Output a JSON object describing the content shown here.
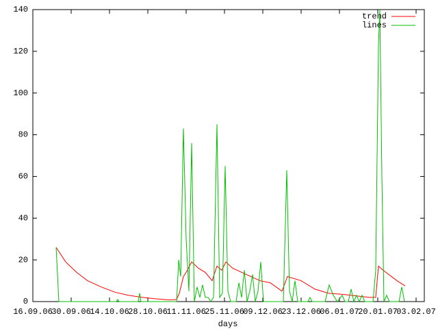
{
  "chart_data": {
    "type": "line",
    "x_label": "days",
    "xlim": [
      0,
      143
    ],
    "ylim": [
      0,
      140
    ],
    "xticks": [
      {
        "value": 0,
        "label": "16.09.06"
      },
      {
        "value": 14,
        "label": "30.09.06"
      },
      {
        "value": 28,
        "label": "14.10.06"
      },
      {
        "value": 42,
        "label": "28.10.06"
      },
      {
        "value": 56,
        "label": "11.11.06"
      },
      {
        "value": 70,
        "label": "25.11.06"
      },
      {
        "value": 84,
        "label": "09.12.06"
      },
      {
        "value": 98,
        "label": "23.12.06"
      },
      {
        "value": 112,
        "label": "06.01.07"
      },
      {
        "value": 126,
        "label": "20.01.07"
      },
      {
        "value": 140,
        "label": "03.02.07"
      }
    ],
    "yticks": [
      0,
      20,
      40,
      60,
      80,
      100,
      120,
      140
    ],
    "legend": "top-right",
    "series": [
      {
        "name": "trend",
        "color": "#ff0000",
        "x": [
          8.5,
          12,
          16,
          20,
          25,
          30,
          35,
          40,
          45,
          50,
          52.5,
          53.5,
          55,
          56,
          58,
          60.5,
          63,
          65.5,
          67.25,
          69,
          70.5,
          73,
          78,
          83,
          86.75,
          91,
          93,
          98,
          103,
          108,
          113,
          123,
          125.25,
          126.25,
          128,
          133,
          136
        ],
        "values": [
          26,
          19,
          14,
          10,
          7,
          4.5,
          3,
          2,
          1.3,
          0.8,
          1,
          4,
          12,
          14,
          19,
          16,
          14,
          10,
          17,
          15,
          19,
          16,
          13,
          10,
          9,
          5,
          12,
          10,
          6,
          4,
          3.5,
          2,
          2,
          17,
          15,
          10,
          7.5
        ]
      },
      {
        "name": "lines",
        "color": "#00c000",
        "x": [
          8.5,
          9.5,
          30.5,
          31,
          31.5,
          38.5,
          39,
          39.5,
          52.5,
          53.3,
          54,
          55,
          56,
          57,
          58,
          59,
          60,
          61,
          62,
          63,
          64,
          65,
          66,
          67.25,
          68.25,
          69.25,
          70.25,
          71.25,
          72.25,
          74.25,
          75.25,
          76.25,
          77.25,
          78.25,
          79.25,
          80.25,
          81.25,
          82.25,
          83.25,
          84.25,
          91.5,
          92.75,
          93.75,
          94.75,
          95.75,
          96.75,
          100.5,
          101.25,
          102,
          106.75,
          108.25,
          109.75,
          111.25,
          113,
          114,
          115.25,
          116.25,
          117.25,
          118.25,
          119.25,
          120.25,
          121.25,
          124.25,
          125.25,
          126.25,
          126.75,
          127.5,
          128.25,
          129.25,
          130.25,
          133.75,
          134.75,
          135.75
        ],
        "values": [
          26,
          0,
          0,
          1,
          0,
          0,
          4,
          0,
          0,
          20,
          12,
          83,
          30,
          5,
          76,
          0,
          7,
          2,
          8,
          2,
          2,
          0,
          2,
          85,
          2,
          4,
          65,
          5,
          0,
          0,
          9,
          2,
          15,
          0,
          5,
          13,
          0,
          5,
          19,
          0,
          0,
          63,
          5,
          0,
          10,
          0,
          0,
          2,
          0,
          0,
          8,
          3,
          0,
          3,
          0,
          0,
          6,
          0,
          3,
          0,
          3,
          0,
          0,
          15,
          123,
          140,
          60,
          0,
          3,
          0,
          0,
          7,
          0
        ]
      }
    ]
  }
}
